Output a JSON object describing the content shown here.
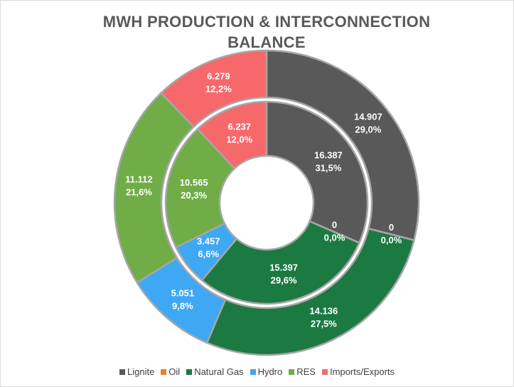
{
  "chart_data": {
    "type": "doughnut",
    "title": "MWH PRODUCTION & INTERCONNECTION BALANCE",
    "categories": [
      "Lignite",
      "Oil",
      "Natural Gas",
      "Hydro",
      "RES",
      "Imports/Exports"
    ],
    "colors": [
      "#595959",
      "#ed7d31",
      "#1b7a42",
      "#3ea8f4",
      "#70ad47",
      "#f7686b"
    ],
    "series": [
      {
        "values": [
          14.907,
          0,
          14.136,
          5.051,
          11.112,
          6.279
        ],
        "percents": [
          29.0,
          0.0,
          27.5,
          9.8,
          21.6,
          12.2
        ],
        "percent_labels": [
          "29,0%",
          "0,0%",
          "27,5%",
          "9,8%",
          "21,6%",
          "12,2%"
        ]
      },
      {
        "values": [
          16.387,
          0,
          15.397,
          3.457,
          10.565,
          6.237
        ],
        "percents": [
          31.5,
          0.0,
          29.6,
          6.6,
          20.3,
          12.0
        ],
        "percent_labels": [
          "31,5%",
          "0,0%",
          "29,6%",
          "6,6%",
          "20,3%",
          "12,0%"
        ]
      }
    ],
    "legend": "bottom"
  }
}
